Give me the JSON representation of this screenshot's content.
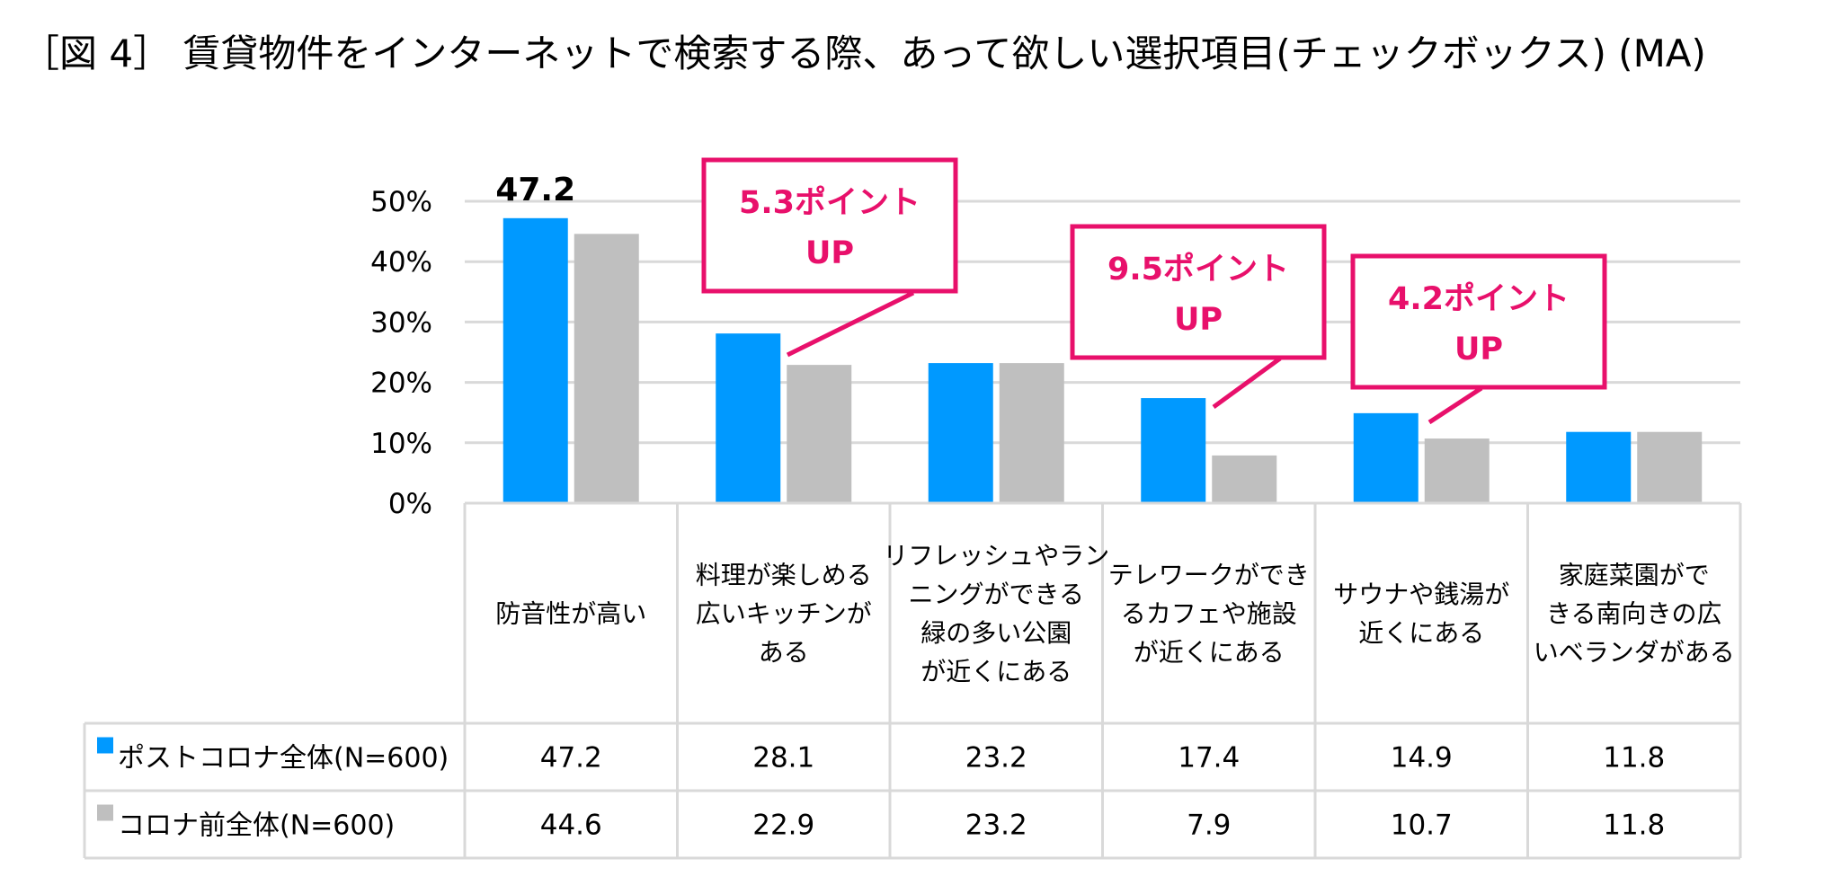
{
  "chart_data": {
    "type": "bar",
    "title": "［図 4］ 賃貸物件をインターネットで検索する際、あって欲しい選択項目(チェックボックス) (MA)",
    "categories": [
      [
        "防音性が高い"
      ],
      [
        "料理が楽しめる",
        "広いキッチンが",
        "ある"
      ],
      [
        "リフレッシュやラン",
        "ニングができる",
        "緑の多い公園",
        "が近くにある"
      ],
      [
        "テレワークができ",
        "るカフェや施設",
        "が近くにある"
      ],
      [
        "サウナや銭湯が",
        "近くにある"
      ],
      [
        "家庭菜園がで",
        "きる南向きの広",
        "いベランダがある"
      ]
    ],
    "series": [
      {
        "name": "ポストコロナ全体(N=600)",
        "color": "#0099ff",
        "values": [
          47.2,
          28.1,
          23.2,
          17.4,
          14.9,
          11.8
        ],
        "display": [
          "47.2",
          "28.1",
          "23.2",
          "17.4",
          "14.9",
          "11.8"
        ]
      },
      {
        "name": "コロナ前全体(N=600)",
        "color": "#bfbfbf",
        "values": [
          44.6,
          22.9,
          23.2,
          7.9,
          10.7,
          11.8
        ],
        "display": [
          "44.6",
          "22.9",
          "23.2",
          "7.9",
          "10.7",
          "11.8"
        ]
      }
    ],
    "ylim": [
      0,
      50
    ],
    "yticks": [
      0,
      10,
      20,
      30,
      40,
      50
    ],
    "ytick_labels": [
      "0%",
      "10%",
      "20%",
      "30%",
      "40%",
      "50%"
    ],
    "grid": true,
    "xlabel": "",
    "ylabel": "",
    "peak_label": {
      "category_index": 0,
      "text": "47.2"
    },
    "annotations": [
      {
        "category_index": 1,
        "lines": [
          "5.3ポイント",
          "UP"
        ]
      },
      {
        "category_index": 3,
        "lines": [
          "9.5ポイント",
          "UP"
        ]
      },
      {
        "category_index": 4,
        "lines": [
          "4.2ポイント",
          "UP"
        ]
      }
    ],
    "accent_color": "#e8106b",
    "grid_color": "#d9d9d9"
  }
}
